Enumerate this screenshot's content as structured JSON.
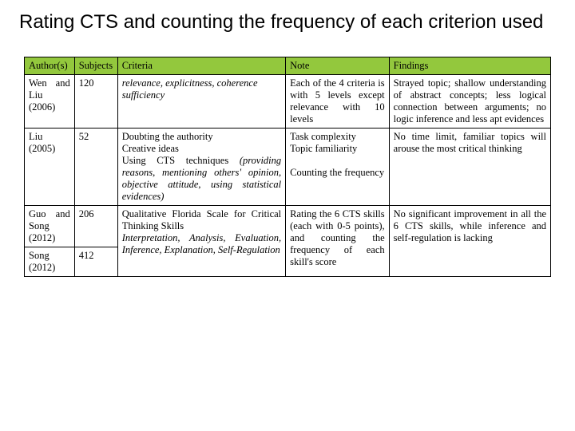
{
  "title": "Rating CTS and counting the frequency of each criterion used",
  "header_bg": "#93c83d",
  "headers": {
    "author": "Author(s)",
    "subjects": "Subjects",
    "criteria": "Criteria",
    "note": "Note",
    "findings": "Findings"
  },
  "rows": [
    {
      "author": "Wen and Liu (2006)",
      "subjects": "120",
      "criteria_italic": "relevance, explicitness, coherence sufficiency",
      "note": "Each of the 4 criteria is with 5 levels except relevance with 10 levels",
      "findings": "Strayed topic; shallow understanding of abstract concepts; less logical connection between arguments; no logic inference and less apt evidences"
    },
    {
      "author": "Liu (2005)",
      "subjects": "52",
      "criteria_plain1": "Doubting the authority",
      "criteria_plain2": "Creative ideas",
      "criteria_plain3": "Using CTS techniques ",
      "criteria_paren_italic": "(providing reasons, mentioning others' opinion, objective attitude, using statistical evidences)",
      "note_line1": "Task complexity",
      "note_line2": "Topic familiarity",
      "note_line3": "Counting the frequency",
      "findings": "No time limit, familiar topics will arouse the most critical thinking"
    },
    {
      "author": "Guo and Song (2012)",
      "subjects": "206",
      "criteria_plain": "Qualitative Florida Scale for Critical Thinking Skills",
      "criteria_italic": "Interpretation, Analysis, Evaluation, Inference, Explanation, Self-Regulation",
      "note": "Rating the 6 CTS skills (each with 0-5 points), and counting the frequency of each skill's score",
      "findings": "No significant improvement in all the 6 CTS skills, while inference and self-regulation is lacking"
    },
    {
      "author": "Song (2012)",
      "subjects": "412"
    }
  ]
}
